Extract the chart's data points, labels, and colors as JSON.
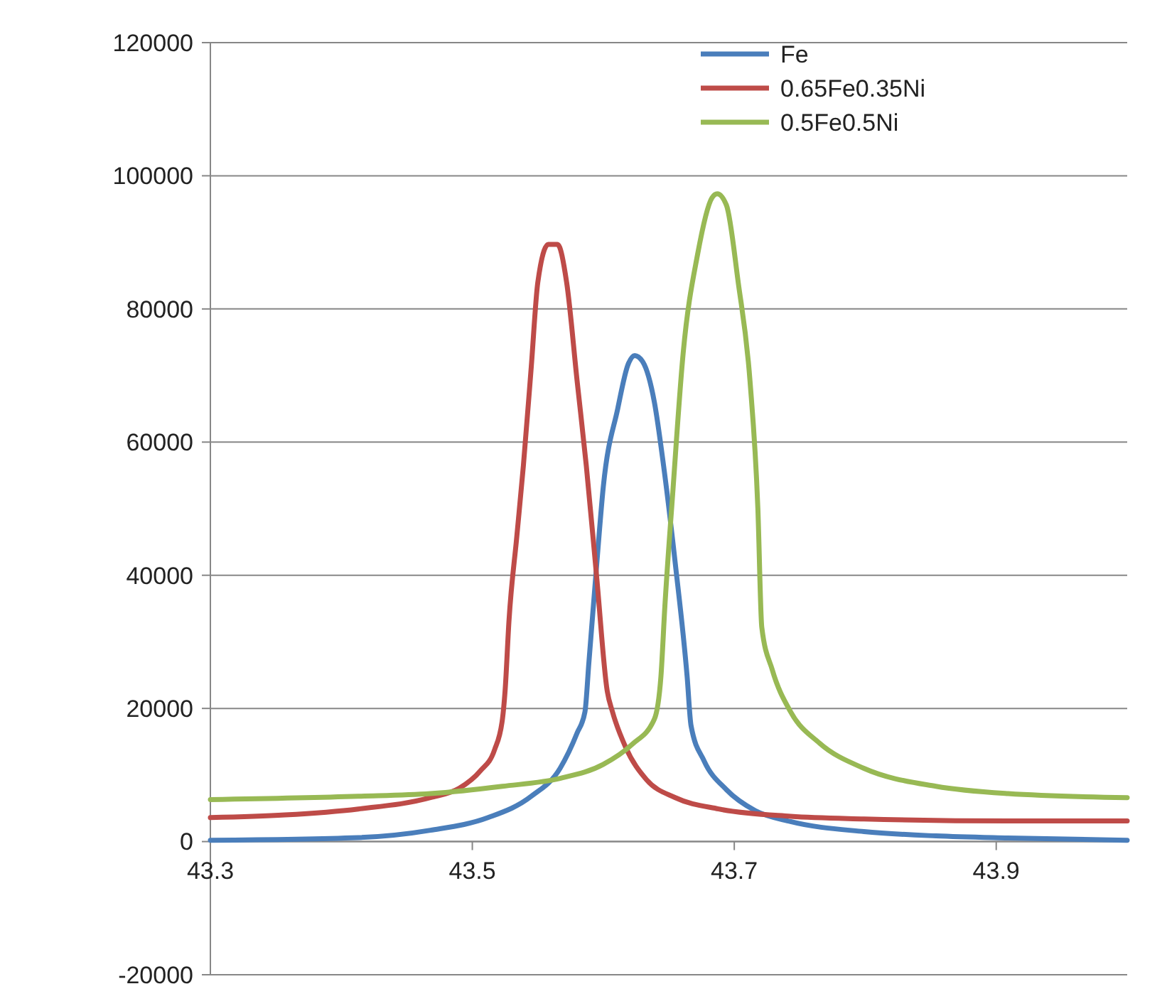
{
  "chart_data": {
    "type": "line",
    "xlim": [
      43.3,
      44.0
    ],
    "xticks": [
      43.3,
      43.5,
      43.7,
      43.9
    ],
    "ylim": [
      -20000,
      120000
    ],
    "yticks": [
      -20000,
      0,
      20000,
      40000,
      60000,
      80000,
      100000,
      120000
    ],
    "grid": "y",
    "legend": "top right",
    "marker": "none",
    "line_style": "solid",
    "series": [
      {
        "name": "Fe",
        "color": "#4a7ebb",
        "x": [
          43.3,
          43.413,
          43.468,
          43.512,
          43.545,
          43.567,
          43.58,
          43.586,
          43.589,
          43.595,
          43.6,
          43.611,
          43.619,
          43.624,
          43.63,
          43.639,
          43.646,
          43.655,
          43.664,
          43.667,
          43.677,
          43.694,
          43.716,
          43.743,
          43.799,
          43.854,
          43.909,
          44.0
        ],
        "values": [
          200,
          600,
          1700,
          3600,
          6800,
          11000,
          16300,
          19500,
          26900,
          41700,
          53300,
          65000,
          71700,
          73000,
          72100,
          66000,
          56500,
          41700,
          24800,
          17400,
          12100,
          7800,
          4650,
          3000,
          1500,
          850,
          530,
          200
        ]
      },
      {
        "name": "0.65Fe0.35Ni",
        "color": "#be4b48",
        "x": [
          43.3,
          43.357,
          43.413,
          43.468,
          43.49,
          43.506,
          43.517,
          43.523,
          43.525,
          43.528,
          43.534,
          43.539,
          43.545,
          43.55,
          43.558,
          43.565,
          43.572,
          43.58,
          43.587,
          43.595,
          43.603,
          43.607,
          43.617,
          43.633,
          43.655,
          43.688,
          43.743,
          43.799,
          43.909,
          44.0
        ],
        "values": [
          3600,
          4000,
          4900,
          6600,
          8000,
          10600,
          13800,
          18400,
          22600,
          33200,
          45900,
          56500,
          71300,
          84000,
          89700,
          89700,
          84000,
          69200,
          56500,
          39600,
          22600,
          19500,
          14200,
          9300,
          6600,
          4900,
          3800,
          3400,
          3100,
          3100
        ]
      },
      {
        "name": "0.5Fe0.5Ni",
        "color": "#98b954",
        "x": [
          43.3,
          43.413,
          43.468,
          43.523,
          43.567,
          43.6,
          43.622,
          43.639,
          43.644,
          43.647,
          43.653,
          43.661,
          43.672,
          43.683,
          43.687,
          43.694,
          43.703,
          43.712,
          43.718,
          43.721,
          43.729,
          43.743,
          43.765,
          43.799,
          43.854,
          43.909,
          44.0
        ],
        "values": [
          6300,
          6800,
          7200,
          8300,
          9500,
          11600,
          14600,
          18400,
          24800,
          35300,
          52300,
          73400,
          88200,
          96700,
          97300,
          95600,
          84000,
          69200,
          50100,
          32200,
          25800,
          19500,
          14800,
          11000,
          8300,
          7200,
          6600
        ]
      }
    ]
  }
}
